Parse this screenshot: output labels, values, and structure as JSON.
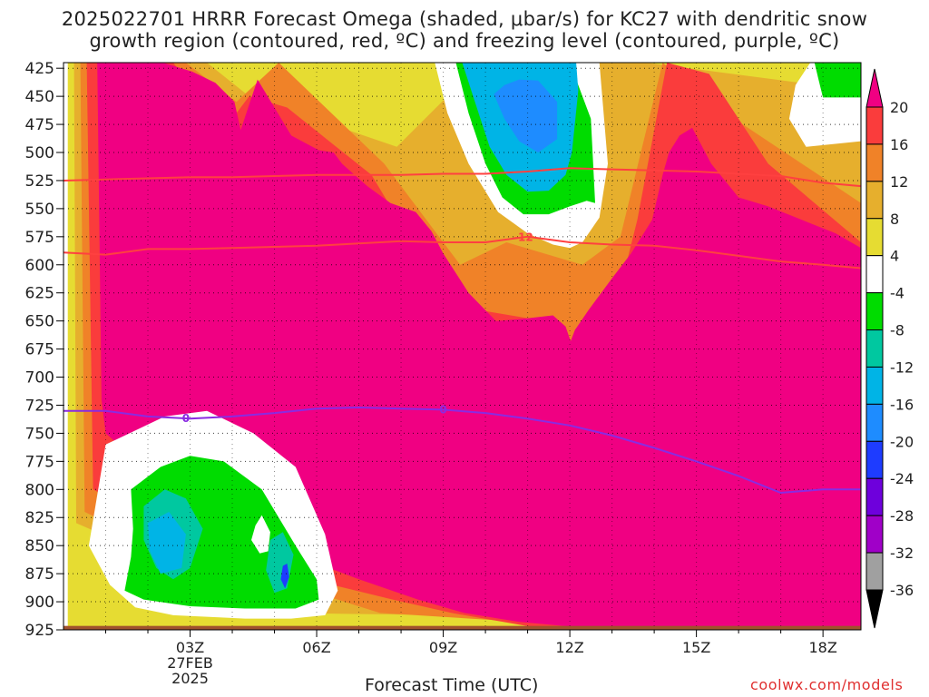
{
  "title_line1": "2025022701 HRRR Forecast Omega (shaded, μbar/s) for KC27 with dendritic snow",
  "title_line2": "growth region (contoured, red, ºC) and freezing level (contoured, purple, ºC)",
  "xlabel": "Forecast Time (UTC)",
  "credit": "coolwx.com/models",
  "colors": {
    "mask_surface": "#a0522d",
    "dgz_contour": "#ff4040",
    "freezing_contour": "#8a2be2"
  },
  "chart_data": {
    "type": "heatmap",
    "ylabel": "",
    "x_ticks": [
      {
        "hour": 3,
        "label": "03Z",
        "sub1": "27FEB",
        "sub2": "2025"
      },
      {
        "hour": 6,
        "label": "06Z"
      },
      {
        "hour": 9,
        "label": "09Z"
      },
      {
        "hour": 12,
        "label": "12Z"
      },
      {
        "hour": 15,
        "label": "15Z"
      },
      {
        "hour": 18,
        "label": "18Z"
      }
    ],
    "xlim": [
      0,
      18.9
    ],
    "y_ticks": [
      425,
      450,
      475,
      500,
      525,
      550,
      575,
      600,
      625,
      650,
      675,
      700,
      725,
      750,
      775,
      800,
      825,
      850,
      875,
      900,
      925
    ],
    "ylim": [
      925,
      420
    ],
    "colorbar": {
      "levels": [
        -36,
        -32,
        -28,
        -24,
        -20,
        -16,
        -12,
        -8,
        -4,
        4,
        8,
        12,
        16,
        20
      ],
      "level_labels": [
        "-36",
        "-32",
        "-28",
        "-24",
        "-20",
        "-16",
        "-12",
        "-8",
        "-4",
        "4",
        "8",
        "12",
        "16",
        "20"
      ],
      "bands": [
        {
          "lo": -36,
          "hi": -32,
          "color": "#a0a0a0"
        },
        {
          "lo": -32,
          "hi": -28,
          "color": "#a000c8"
        },
        {
          "lo": -28,
          "hi": -24,
          "color": "#6e00dc"
        },
        {
          "lo": -24,
          "hi": -20,
          "color": "#1e3cff"
        },
        {
          "lo": -20,
          "hi": -16,
          "color": "#1e8cff"
        },
        {
          "lo": -16,
          "hi": -12,
          "color": "#00b4e6"
        },
        {
          "lo": -12,
          "hi": -8,
          "color": "#00c8a0"
        },
        {
          "lo": -8,
          "hi": -4,
          "color": "#00dc00"
        },
        {
          "lo": -4,
          "hi": 4,
          "color": "#ffffff"
        },
        {
          "lo": 4,
          "hi": 8,
          "color": "#e6dc32"
        },
        {
          "lo": 8,
          "hi": 12,
          "color": "#e6af2d"
        },
        {
          "lo": 12,
          "hi": 16,
          "color": "#f08228"
        },
        {
          "lo": 16,
          "hi": 20,
          "color": "#fa3c3c"
        }
      ],
      "over_color": "#f00082",
      "under_color": "#000000"
    },
    "contours": {
      "dgz": [
        {
          "label": "",
          "x": [
            0,
            1,
            2,
            3,
            4,
            5,
            6,
            7,
            8,
            9,
            10,
            11,
            12,
            13,
            14,
            15,
            16,
            17,
            18,
            18.9
          ],
          "y": [
            525,
            524,
            523,
            522,
            522,
            521,
            520,
            520,
            520,
            519,
            519,
            517,
            514,
            515,
            516,
            517,
            519,
            521,
            527,
            530
          ]
        },
        {
          "label": "-12",
          "label_at": 10.9,
          "x": [
            0,
            1,
            2,
            3,
            4,
            5,
            6,
            7,
            8,
            9,
            10,
            11,
            12,
            13,
            14,
            15,
            16,
            17,
            18,
            18.9
          ],
          "y": [
            589,
            591,
            586,
            586,
            585,
            584,
            583,
            581,
            579,
            580,
            580,
            575,
            580,
            582,
            583,
            587,
            592,
            597,
            600,
            603
          ]
        }
      ],
      "freezing": [
        {
          "label": "0",
          "label_at": [
            2.9,
            9.0
          ],
          "x": [
            0,
            1,
            2,
            3,
            4,
            5,
            6,
            7,
            8,
            9,
            10,
            11,
            12,
            13,
            14,
            15,
            16,
            17,
            18,
            18.9
          ],
          "y": [
            730,
            730,
            735,
            737,
            735,
            732,
            728,
            727,
            728,
            729,
            732,
            737,
            743,
            752,
            763,
            775,
            788,
            803,
            800,
            800
          ]
        }
      ]
    },
    "omega_regions": [
      {
        "value": 6,
        "x": [
          0.1,
          18.9,
          18.9,
          0.1
        ],
        "y": [
          420,
          420,
          925,
          925
        ]
      },
      {
        "value": 10,
        "x": [
          0.25,
          3.4,
          4.4,
          7.9,
          9.9,
          12.6,
          13.8,
          18.9,
          18.9,
          16.2,
          12.9,
          9.2,
          5.2,
          0.3
        ],
        "y": [
          420,
          420,
          450,
          495,
          420,
          420,
          420,
          445,
          600,
          912,
          912,
          912,
          910,
          830
        ]
      },
      {
        "value": 14,
        "x": [
          0.4,
          2.9,
          4.1,
          5.1,
          7.6,
          9.4,
          10.5,
          12.3,
          13.2,
          14.2,
          15.9,
          18.9,
          18.9,
          16.6,
          10.9,
          7.5,
          5.4,
          3.2,
          0.5
        ],
        "y": [
          420,
          420,
          455,
          420,
          510,
          600,
          580,
          600,
          575,
          420,
          470,
          545,
          920,
          920,
          918,
          910,
          885,
          870,
          820
        ]
      },
      {
        "value": 18,
        "x": [
          0.55,
          2.6,
          3.8,
          4.4,
          5.3,
          7.3,
          8.9,
          9.8,
          11.4,
          12.0,
          12.5,
          13.2,
          13.6,
          14.3,
          15.3,
          16.7,
          18.9,
          18.9,
          16.9,
          11.2,
          9.2,
          7.8,
          5.6,
          3.7,
          0.7
        ],
        "y": [
          420,
          420,
          480,
          450,
          460,
          520,
          620,
          640,
          650,
          690,
          650,
          620,
          560,
          420,
          430,
          510,
          580,
          925,
          925,
          923,
          910,
          898,
          878,
          860,
          800
        ]
      },
      {
        "value": 24,
        "x": [
          0.8,
          2.35,
          3.05,
          3.6,
          4.05,
          4.2,
          4.6,
          5.4,
          6.05,
          6.4,
          6.6,
          7.2,
          7.75,
          8.35,
          8.72,
          9.0,
          9.6,
          10.25,
          10.9,
          11.6,
          11.9,
          12.02,
          12.12,
          12.45,
          13.0,
          13.45,
          13.95,
          14.2,
          14.35,
          14.6,
          14.9,
          15.35,
          16.0,
          16.7,
          17.5,
          18.3,
          18.9,
          18.9,
          17.0,
          14.6,
          12.0,
          10.8,
          9.5,
          8.4,
          7.0,
          5.6,
          4.8,
          3.8,
          3.0,
          2.0,
          1.6,
          1.0,
          0.9
        ],
        "y": [
          420,
          420,
          428,
          438,
          455,
          480,
          435,
          485,
          498,
          500,
          510,
          530,
          545,
          553,
          570,
          590,
          625,
          650,
          648,
          645,
          655,
          668,
          658,
          640,
          612,
          590,
          560,
          520,
          500,
          485,
          478,
          510,
          540,
          548,
          560,
          572,
          585,
          925,
          925,
          924,
          922,
          918,
          910,
          898,
          880,
          860,
          848,
          830,
          810,
          790,
          770,
          750,
          720
        ]
      },
      {
        "value": 0,
        "x": [
          1.0,
          2.4,
          3.4,
          4.5,
          5.5,
          6.2,
          6.5,
          6.2,
          5.4,
          4.3,
          2.6,
          1.7,
          1.1,
          0.6
        ],
        "y": [
          760,
          735,
          730,
          750,
          780,
          840,
          890,
          912,
          915,
          915,
          912,
          905,
          885,
          850
        ]
      },
      {
        "value": -6,
        "x": [
          1.6,
          2.3,
          3.0,
          3.8,
          4.7,
          5.5,
          6.0,
          6.05,
          5.5,
          4.3,
          3.0,
          1.9,
          1.45,
          1.6,
          1.65
        ],
        "y": [
          800,
          780,
          770,
          775,
          800,
          850,
          880,
          898,
          906,
          906,
          904,
          898,
          890,
          860,
          835
        ]
      },
      {
        "value": -10,
        "x": [
          1.9,
          2.4,
          2.9,
          3.3,
          3.0,
          2.6,
          2.2,
          1.9
        ],
        "y": [
          815,
          800,
          808,
          835,
          870,
          880,
          870,
          845
        ]
      },
      {
        "value": -14,
        "x": [
          2.0,
          2.5,
          2.9,
          2.8,
          2.3,
          2.05
        ],
        "y": [
          830,
          820,
          840,
          870,
          875,
          855
        ]
      },
      {
        "value": 0,
        "x": [
          4.55,
          4.7,
          4.9,
          4.85,
          4.65,
          4.45
        ],
        "y": [
          832,
          823,
          838,
          855,
          857,
          845
        ]
      },
      {
        "value": -10,
        "x": [
          4.9,
          5.2,
          5.45,
          5.3,
          5.0,
          4.8
        ],
        "y": [
          845,
          838,
          858,
          888,
          892,
          872
        ]
      },
      {
        "value": -22,
        "x": [
          5.2,
          5.3,
          5.35,
          5.25,
          5.15
        ],
        "y": [
          868,
          866,
          878,
          888,
          880
        ]
      },
      {
        "value": 0,
        "x": [
          8.8,
          9.1,
          9.6,
          10.3,
          11.0,
          11.6,
          12.0,
          12.3,
          12.7,
          12.9,
          12.7,
          12.4,
          12.0,
          11.7,
          11.3,
          10.8,
          10.3,
          9.9,
          9.6,
          9.3,
          9.0
        ],
        "y": [
          420,
          465,
          510,
          553,
          572,
          582,
          585,
          580,
          558,
          510,
          420,
          420,
          420,
          420,
          420,
          420,
          420,
          420,
          420,
          420,
          420
        ]
      },
      {
        "value": -6,
        "x": [
          9.3,
          9.6,
          10.0,
          10.4,
          10.9,
          11.5,
          12.0,
          12.4,
          12.6,
          12.5,
          12.0,
          11.5,
          11.0,
          10.5,
          10.0,
          9.6
        ],
        "y": [
          420,
          465,
          510,
          540,
          555,
          555,
          548,
          543,
          545,
          470,
          420,
          420,
          420,
          420,
          420,
          420
        ]
      },
      {
        "value": -14,
        "x": [
          9.45,
          9.75,
          10.1,
          10.5,
          11.0,
          11.5,
          11.9,
          12.05,
          12.2,
          12.15,
          11.5,
          10.5,
          9.9
        ],
        "y": [
          420,
          455,
          495,
          520,
          535,
          534,
          520,
          500,
          445,
          420,
          420,
          420,
          420
        ]
      },
      {
        "value": -18,
        "x": [
          10.2,
          10.45,
          10.8,
          11.25,
          11.7,
          11.7,
          11.25,
          10.8,
          10.45
        ],
        "y": [
          448,
          470,
          490,
          500,
          488,
          455,
          436,
          435,
          440
        ]
      },
      {
        "value": 0,
        "x": [
          17.7,
          18.9,
          18.9,
          17.6,
          17.2,
          17.35
        ],
        "y": [
          420,
          420,
          490,
          495,
          470,
          440
        ]
      },
      {
        "value": -6,
        "x": [
          17.8,
          18.9,
          18.9,
          18.0,
          17.9
        ],
        "y": [
          420,
          420,
          451,
          451,
          436
        ]
      }
    ]
  }
}
